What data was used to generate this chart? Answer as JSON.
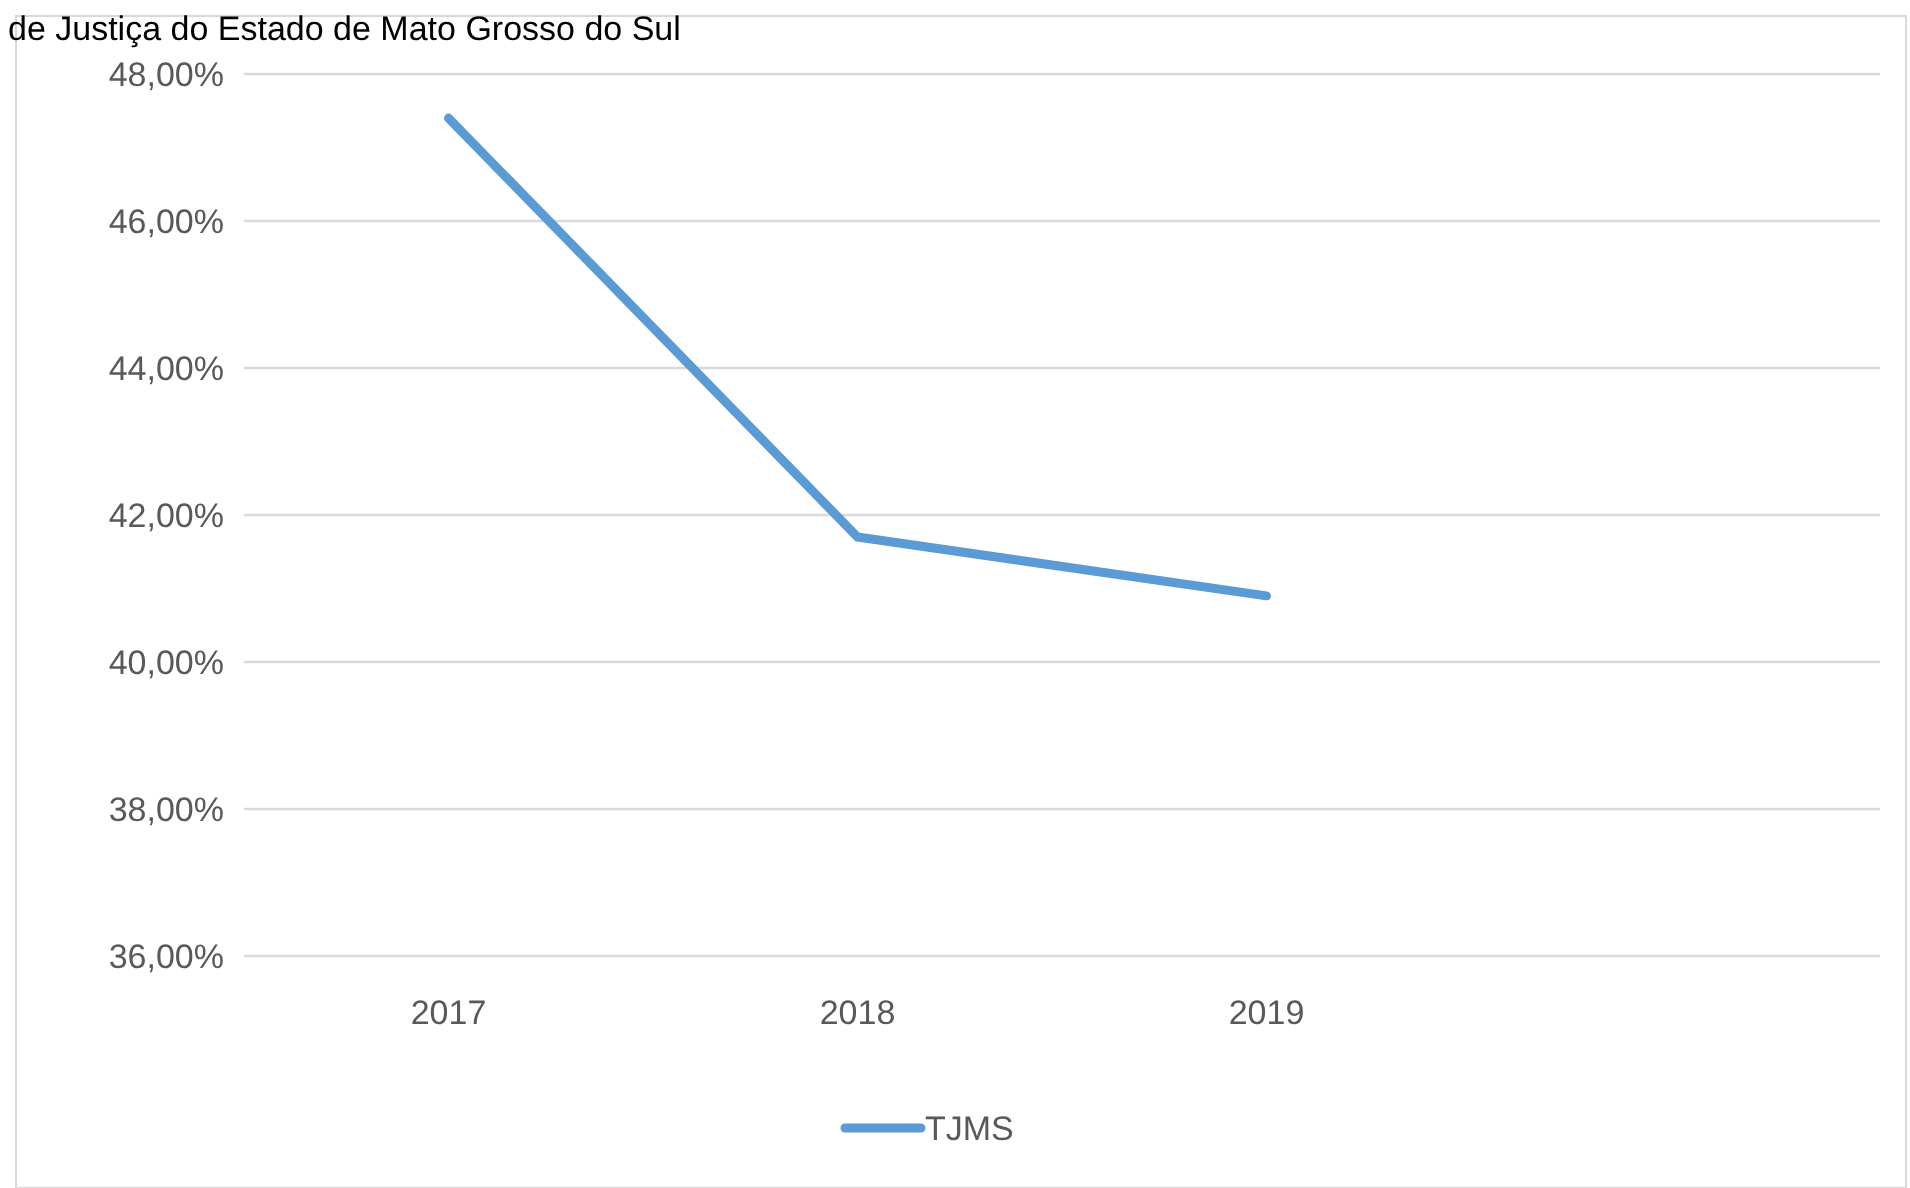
{
  "chart_data": {
    "type": "line",
    "title": "de Justiça do Estado de Mato Grosso do Sul",
    "categories": [
      "2017",
      "2018",
      "2019",
      null
    ],
    "series": [
      {
        "name": "TJMS",
        "color": "#5b9bd5",
        "values": [
          47.4,
          41.7,
          40.9,
          null
        ]
      }
    ],
    "ylim": [
      36,
      48
    ],
    "yticks": [
      {
        "value": 36,
        "label": "36,00%"
      },
      {
        "value": 38,
        "label": "38,00%"
      },
      {
        "value": 40,
        "label": "40,00%"
      },
      {
        "value": 42,
        "label": "42,00%"
      },
      {
        "value": 44,
        "label": "44,00%"
      },
      {
        "value": 46,
        "label": "46,00%"
      },
      {
        "value": 48,
        "label": "48,00%"
      }
    ],
    "grid": "y",
    "legend": "bottom",
    "marker": "none",
    "line_style": "solid"
  }
}
